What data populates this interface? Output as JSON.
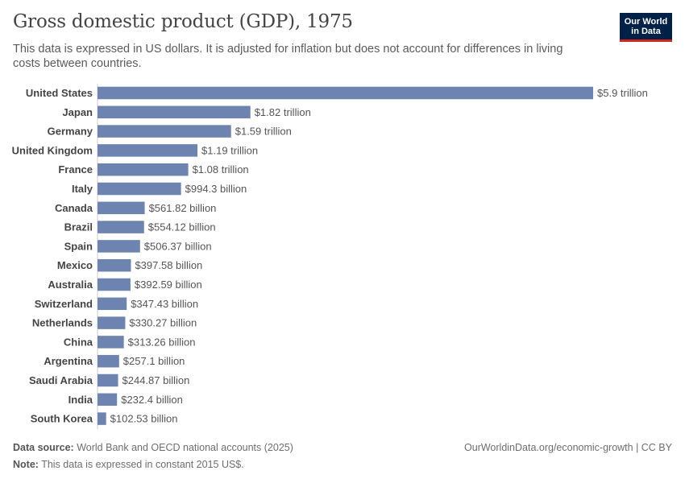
{
  "header": {
    "title": "Gross domestic product (GDP), 1975",
    "subtitle": "This data is expressed in US dollars. It is adjusted for inflation but does not account for differences in living costs between countries.",
    "logo_line1": "Our World",
    "logo_line2": "in Data"
  },
  "colors": {
    "bar": "#6d84b0",
    "axis": "#cccccc",
    "label": "#444444",
    "value": "#555555"
  },
  "chart_data": {
    "type": "bar",
    "orientation": "horizontal",
    "title": "Gross domestic product (GDP), 1975",
    "unit": "US dollars (constant 2015 US$)",
    "categories": [
      "United States",
      "Japan",
      "Germany",
      "United Kingdom",
      "France",
      "Italy",
      "Canada",
      "Brazil",
      "Spain",
      "Mexico",
      "Australia",
      "Switzerland",
      "Netherlands",
      "China",
      "Argentina",
      "Saudi Arabia",
      "India",
      "South Korea"
    ],
    "values": [
      5900000000000.0,
      1820000000000.0,
      1590000000000.0,
      1190000000000.0,
      1080000000000.0,
      994300000000.0,
      561820000000.0,
      554120000000.0,
      506370000000.0,
      397580000000.0,
      392590000000.0,
      347430000000.0,
      330270000000.0,
      313260000000.0,
      257100000000.0,
      244870000000.0,
      232400000000.0,
      102530000000.0
    ],
    "value_labels": [
      "$5.9 trillion",
      "$1.82 trillion",
      "$1.59 trillion",
      "$1.19 trillion",
      "$1.08 trillion",
      "$994.3 billion",
      "$561.82 billion",
      "$554.12 billion",
      "$506.37 billion",
      "$397.58 billion",
      "$392.59 billion",
      "$347.43 billion",
      "$330.27 billion",
      "$313.26 billion",
      "$257.1 billion",
      "$244.87 billion",
      "$232.4 billion",
      "$102.53 billion"
    ],
    "xlim": [
      0,
      5900000000000.0
    ]
  },
  "footer": {
    "source_label": "Data source:",
    "source_text": "World Bank and OECD national accounts (2025)",
    "note_label": "Note:",
    "note_text": "This data is expressed in constant 2015 US$.",
    "url_text": "OurWorldinData.org/economic-growth | CC BY"
  }
}
